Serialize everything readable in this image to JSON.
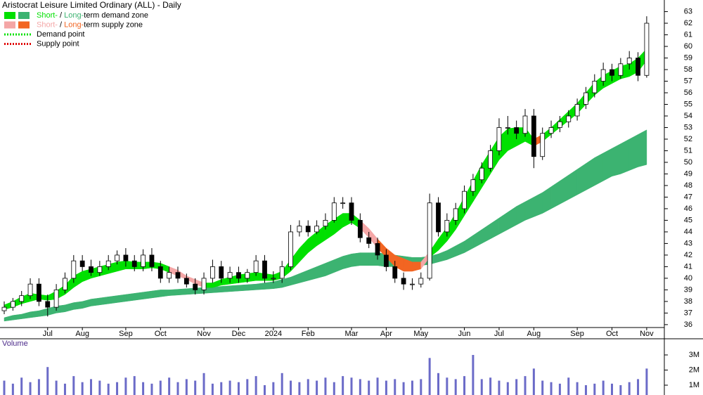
{
  "chart_data": {
    "type": "candlestick",
    "title": "Aristocrat Leisure Limited Ordinary (ALL) - Daily",
    "categories": [
      null,
      null,
      null,
      null,
      null,
      "Jul",
      null,
      null,
      null,
      "Aug",
      null,
      null,
      null,
      null,
      "Sep",
      null,
      null,
      null,
      "Oct",
      null,
      null,
      null,
      null,
      "Nov",
      null,
      null,
      null,
      "Dec",
      null,
      null,
      null,
      "2024",
      null,
      null,
      null,
      "Feb",
      null,
      null,
      null,
      null,
      "Mar",
      null,
      null,
      null,
      "Apr",
      null,
      null,
      null,
      "May",
      null,
      null,
      null,
      null,
      "Jun",
      null,
      null,
      null,
      "Jul",
      null,
      null,
      null,
      "Aug",
      null,
      null,
      null,
      null,
      "Sep",
      null,
      null,
      null,
      "Oct",
      null,
      null,
      null,
      "Nov"
    ],
    "open": [
      37.2,
      37.5,
      38,
      38.5,
      39.5,
      38,
      37.5,
      39,
      40,
      41.5,
      41,
      40.5,
      41,
      41.5,
      42,
      41.5,
      41,
      42,
      41,
      40,
      40.5,
      40,
      39.5,
      39,
      40,
      41,
      40,
      40.5,
      40,
      40.5,
      41.5,
      40,
      40,
      41,
      44,
      44.5,
      44,
      44.5,
      45,
      46.5,
      46.5,
      45,
      43.5,
      43,
      42,
      41,
      40,
      39.5,
      39.5,
      40,
      46.5,
      44,
      45,
      46,
      47.5,
      48.5,
      49.5,
      51,
      53,
      53,
      52.5,
      54,
      50.5,
      52.5,
      53,
      53.5,
      54,
      55,
      56,
      57,
      58,
      57.5,
      58.5,
      59,
      57.5
    ],
    "high": [
      38,
      38.3,
      38.9,
      40,
      40,
      38.6,
      39.5,
      40.5,
      42,
      42,
      41.6,
      41.5,
      42,
      42.4,
      42.6,
      42,
      42.5,
      42.6,
      41.5,
      41,
      41,
      40.4,
      40,
      40.5,
      41.6,
      41.5,
      41,
      41,
      40.8,
      42,
      42,
      40.6,
      41.5,
      44.6,
      45,
      45,
      45,
      45.6,
      47,
      47,
      47,
      45.6,
      44,
      43.5,
      42.5,
      41.5,
      40.5,
      40,
      40.5,
      47.3,
      47,
      45.6,
      46.5,
      48,
      49,
      50,
      51.5,
      53.8,
      54,
      53.6,
      54.6,
      54.6,
      53,
      53.6,
      54,
      54.5,
      55.5,
      56.5,
      57.6,
      58.6,
      58.5,
      59,
      59.6,
      59.5,
      62.6
    ],
    "low": [
      36.9,
      37.2,
      37.6,
      38.2,
      37.6,
      36.7,
      37.2,
      38.7,
      39.6,
      40.6,
      40.2,
      40.2,
      40.7,
      41.2,
      41,
      40.6,
      40.6,
      40.6,
      39.6,
      39.6,
      39.6,
      39.2,
      38.6,
      38.6,
      39.6,
      39.6,
      39.6,
      39.6,
      39.6,
      40.2,
      39.6,
      39.6,
      39.6,
      40.7,
      43.6,
      43.6,
      43.8,
      44.2,
      44.8,
      46,
      44.6,
      43.1,
      42.6,
      41.6,
      40.6,
      39.6,
      39,
      39,
      39.2,
      39.8,
      43.6,
      43.6,
      44.6,
      45.6,
      47.1,
      48.2,
      49.2,
      50.6,
      52.4,
      52,
      52.2,
      49.5,
      50.2,
      52.1,
      52.6,
      53,
      53.6,
      54.6,
      55.6,
      56.6,
      57,
      57.2,
      58,
      57,
      57.3
    ],
    "close": [
      37.5,
      38,
      38.5,
      39.5,
      38,
      37.5,
      39,
      40,
      41.5,
      41,
      40.5,
      41,
      41.5,
      42,
      41.5,
      41,
      42,
      41,
      40,
      40.5,
      40,
      39.5,
      39,
      40,
      41,
      40,
      40.5,
      40,
      40.5,
      41.5,
      40,
      40,
      41,
      44,
      44.5,
      44,
      44.5,
      45,
      46.5,
      46.5,
      45,
      43.5,
      43,
      42,
      41,
      40,
      39.5,
      39.5,
      40,
      46.5,
      44,
      45,
      46,
      47.5,
      48.5,
      49.5,
      51,
      53,
      53,
      52.5,
      54,
      50.5,
      52.5,
      53,
      53.5,
      54,
      55,
      56,
      57,
      58,
      57.5,
      58.5,
      59,
      57.5,
      62
    ],
    "up_color": "#ffffff",
    "down_color": "#000000",
    "short_zone": {
      "lower": [
        37.3,
        37.5,
        37.8,
        38,
        38.2,
        38.1,
        38.2,
        38.6,
        39.2,
        39.7,
        40,
        40.2,
        40.4,
        40.6,
        40.8,
        40.8,
        40.8,
        40.9,
        40.8,
        40.5,
        40.2,
        39.9,
        39.5,
        39.2,
        39.2,
        39.4,
        39.5,
        39.6,
        39.7,
        39.8,
        39.8,
        39.8,
        40,
        40.6,
        41.4,
        42.2,
        42.8,
        43.3,
        43.8,
        44.4,
        44.8,
        44.3,
        43.5,
        42.6,
        41.8,
        41,
        40.6,
        40.6,
        40.8,
        41.8,
        42.4,
        43.2,
        44.2,
        45.4,
        46.6,
        47.8,
        49,
        50.2,
        51,
        51.4,
        51.8,
        51.4,
        51.8,
        52.4,
        53,
        53.6,
        54.2,
        55,
        55.8,
        56.4,
        56.8,
        57.2,
        57.4,
        57.8,
        58.8
      ],
      "upper": [
        37.7,
        38,
        38.4,
        38.7,
        38.6,
        38.5,
        38.9,
        39.4,
        40.2,
        40.6,
        40.8,
        41,
        41.2,
        41.4,
        41.5,
        41.4,
        41.4,
        41.4,
        41.3,
        41,
        40.7,
        40.2,
        39.9,
        39.6,
        39.6,
        39.9,
        40.1,
        40.3,
        40.4,
        40.5,
        40.4,
        40.3,
        40.6,
        41.6,
        42.6,
        43.4,
        44,
        44.6,
        45.1,
        45.6,
        45.6,
        45,
        44.3,
        43.4,
        42.6,
        42,
        41.7,
        41.4,
        41.4,
        42.3,
        43.4,
        44.4,
        45.6,
        47,
        48.4,
        49.8,
        51,
        52.2,
        52.9,
        53,
        53,
        52,
        52.4,
        53,
        53.7,
        54.4,
        55.1,
        56,
        56.9,
        57.5,
        57.9,
        58.3,
        58.5,
        59,
        59.8
      ],
      "colors": [
        "#00e000",
        "#00e000",
        "#00e000",
        "#00e000",
        "#00e000",
        "#00e000",
        "#00e000",
        "#00e000",
        "#00e000",
        "#00e000",
        "#00e000",
        "#00e000",
        "#00e000",
        "#00e000",
        "#00e000",
        "#00e000",
        "#00e000",
        "#00e000",
        "#00e000",
        "#f4a6a6",
        "#f4a6a6",
        "#f4a6a6",
        "#f4a6a6",
        "#00e000",
        "#00e000",
        "#00e000",
        "#00e000",
        "#00e000",
        "#00e000",
        "#00e000",
        "#00e000",
        "#00e000",
        "#00e000",
        "#00e000",
        "#00e000",
        "#00e000",
        "#00e000",
        "#00e000",
        "#00e000",
        "#00e000",
        "#00e000",
        "#f4a6a6",
        "#f4a6a6",
        "#f26522",
        "#f26522",
        "#f26522",
        "#f26522",
        "#f26522",
        "#f4a6a6",
        "#00e000",
        "#00e000",
        "#00e000",
        "#00e000",
        "#00e000",
        "#00e000",
        "#00e000",
        "#00e000",
        "#00e000",
        "#00e000",
        "#00e000",
        "#00e000",
        "#f26522",
        "#00e000",
        "#00e000",
        "#00e000",
        "#00e000",
        "#00e000",
        "#00e000",
        "#00e000",
        "#00e000",
        "#00e000",
        "#00e000",
        "#00e000",
        "#00e000",
        "#00e000"
      ]
    },
    "long_zone": {
      "lower": [
        36.3,
        36.4,
        36.5,
        36.6,
        36.7,
        36.8,
        37,
        37.1,
        37.3,
        37.4,
        37.6,
        37.7,
        37.8,
        37.9,
        38,
        38.1,
        38.2,
        38.3,
        38.4,
        38.5,
        38.55,
        38.6,
        38.65,
        38.7,
        38.75,
        38.8,
        38.85,
        38.9,
        38.95,
        39,
        39.05,
        39.1,
        39.2,
        39.4,
        39.6,
        39.8,
        40,
        40.2,
        40.5,
        40.8,
        41,
        41.1,
        41.1,
        41.1,
        41,
        41,
        41,
        41,
        41.1,
        41.2,
        41.4,
        41.6,
        41.9,
        42.2,
        42.6,
        43,
        43.4,
        43.8,
        44.2,
        44.6,
        45,
        45.3,
        45.6,
        46,
        46.4,
        46.8,
        47.2,
        47.6,
        48,
        48.4,
        48.8,
        49,
        49.3,
        49.6,
        49.8
      ],
      "upper": [
        36.6,
        36.8,
        36.9,
        37.1,
        37.2,
        37.4,
        37.6,
        37.7,
        37.9,
        38,
        38.2,
        38.3,
        38.4,
        38.5,
        38.6,
        38.7,
        38.8,
        38.9,
        39,
        39,
        39.05,
        39.1,
        39.15,
        39.2,
        39.25,
        39.3,
        39.35,
        39.4,
        39.45,
        39.5,
        39.6,
        39.7,
        39.9,
        40.1,
        40.4,
        40.7,
        41,
        41.3,
        41.6,
        41.9,
        42.1,
        42.2,
        42.2,
        42.2,
        42.1,
        42,
        41.9,
        41.8,
        41.8,
        41.9,
        42.1,
        42.4,
        42.8,
        43.2,
        43.7,
        44.2,
        44.7,
        45.2,
        45.7,
        46.2,
        46.6,
        47,
        47.4,
        47.9,
        48.4,
        48.9,
        49.4,
        49.9,
        50.4,
        50.8,
        51.2,
        51.6,
        52,
        52.4,
        52.8
      ],
      "color": "#3cb371"
    },
    "ylim": [
      35.75,
      63.7
    ],
    "yticks": [
      36,
      37,
      38,
      39,
      40,
      41,
      42,
      43,
      44,
      45,
      46,
      47,
      48,
      49,
      50,
      51,
      52,
      53,
      54,
      55,
      56,
      57,
      58,
      59,
      60,
      61,
      62,
      63
    ],
    "legend": [
      {
        "colors": [
          "#00e000",
          "#3cb371"
        ],
        "parts": [
          "Short-",
          " / ",
          "Long-",
          "term demand zone"
        ]
      },
      {
        "colors": [
          "#f4a6a6",
          "#f26522"
        ],
        "parts": [
          "Short-",
          " / ",
          "Long-",
          "term supply zone"
        ]
      },
      {
        "line": "#00e000",
        "label": "Demand point"
      },
      {
        "line": "#e00000",
        "label": "Supply point"
      }
    ],
    "volume": {
      "title": "Volume",
      "color": "#6b6bc8",
      "values": [
        1300000,
        1100000,
        1500000,
        1200000,
        1400000,
        2200000,
        1300000,
        1100000,
        1600000,
        1200000,
        1400000,
        1300000,
        1100000,
        1200000,
        1500000,
        1600000,
        1200000,
        1100000,
        1300000,
        1500000,
        1200000,
        1400000,
        1300000,
        1800000,
        1100000,
        1200000,
        1300000,
        1200000,
        1400000,
        1600000,
        1000000,
        1200000,
        1800000,
        1300000,
        1200000,
        1400000,
        1300000,
        1500000,
        1200000,
        1600000,
        1500000,
        1400000,
        1300000,
        1500000,
        1300000,
        1400000,
        1200000,
        1300000,
        1400000,
        2800000,
        1800000,
        1500000,
        1400000,
        1600000,
        3000000,
        1400000,
        1500000,
        1300000,
        1200000,
        1400000,
        1600000,
        2100000,
        1300000,
        1200000,
        1100000,
        1500000,
        1200000,
        1000000,
        1100000,
        1300000,
        1100000,
        1000000,
        1200000,
        1400000,
        2100000
      ],
      "ylim": [
        350000,
        4070000
      ],
      "yticks": [
        {
          "value": 1000000,
          "label": "1M"
        },
        {
          "value": 2000000,
          "label": "2M"
        },
        {
          "value": 3000000,
          "label": "3M"
        }
      ]
    }
  }
}
